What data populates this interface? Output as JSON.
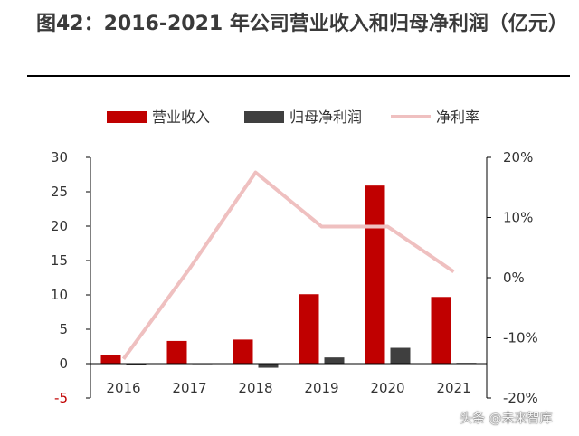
{
  "title": "图42：2016-2021 年公司营业收入和归母净利润（亿元）",
  "watermark": "头条 @未来智库",
  "colors": {
    "revenue": "#c00000",
    "profit": "#3f3f3f",
    "margin": "#efc0c0",
    "axis": "#000000",
    "text": "#333333"
  },
  "chart_data": {
    "type": "bar",
    "categories": [
      "2016",
      "2017",
      "2018",
      "2019",
      "2020",
      "2021"
    ],
    "series": [
      {
        "name": "营业收入",
        "kind": "bar",
        "axis": "left",
        "values": [
          1.3,
          3.3,
          3.5,
          10.1,
          25.9,
          9.7
        ]
      },
      {
        "name": "归母净利润",
        "kind": "bar",
        "axis": "left",
        "values": [
          -0.2,
          0.05,
          -0.6,
          0.9,
          2.3,
          0.1
        ]
      },
      {
        "name": "净利率",
        "kind": "line",
        "axis": "right",
        "values": [
          -13.5,
          1.5,
          17.5,
          8.5,
          8.5,
          1.0
        ]
      }
    ],
    "ylim": [
      -5,
      30
    ],
    "y_ticks": [
      "30",
      "25",
      "20",
      "15",
      "10",
      "5",
      "0",
      "-5"
    ],
    "y_tick_values": [
      30,
      25,
      20,
      15,
      10,
      5,
      0,
      -5
    ],
    "y2lim": [
      -20,
      20
    ],
    "y2_ticks": [
      "20%",
      "10%",
      "0%",
      "-10%",
      "-20%"
    ],
    "y2_tick_values": [
      20,
      10,
      0,
      -10,
      -20
    ],
    "legend": {
      "position": "top",
      "items": [
        "营业收入",
        "归母净利润",
        "净利率"
      ]
    },
    "grid": false
  }
}
